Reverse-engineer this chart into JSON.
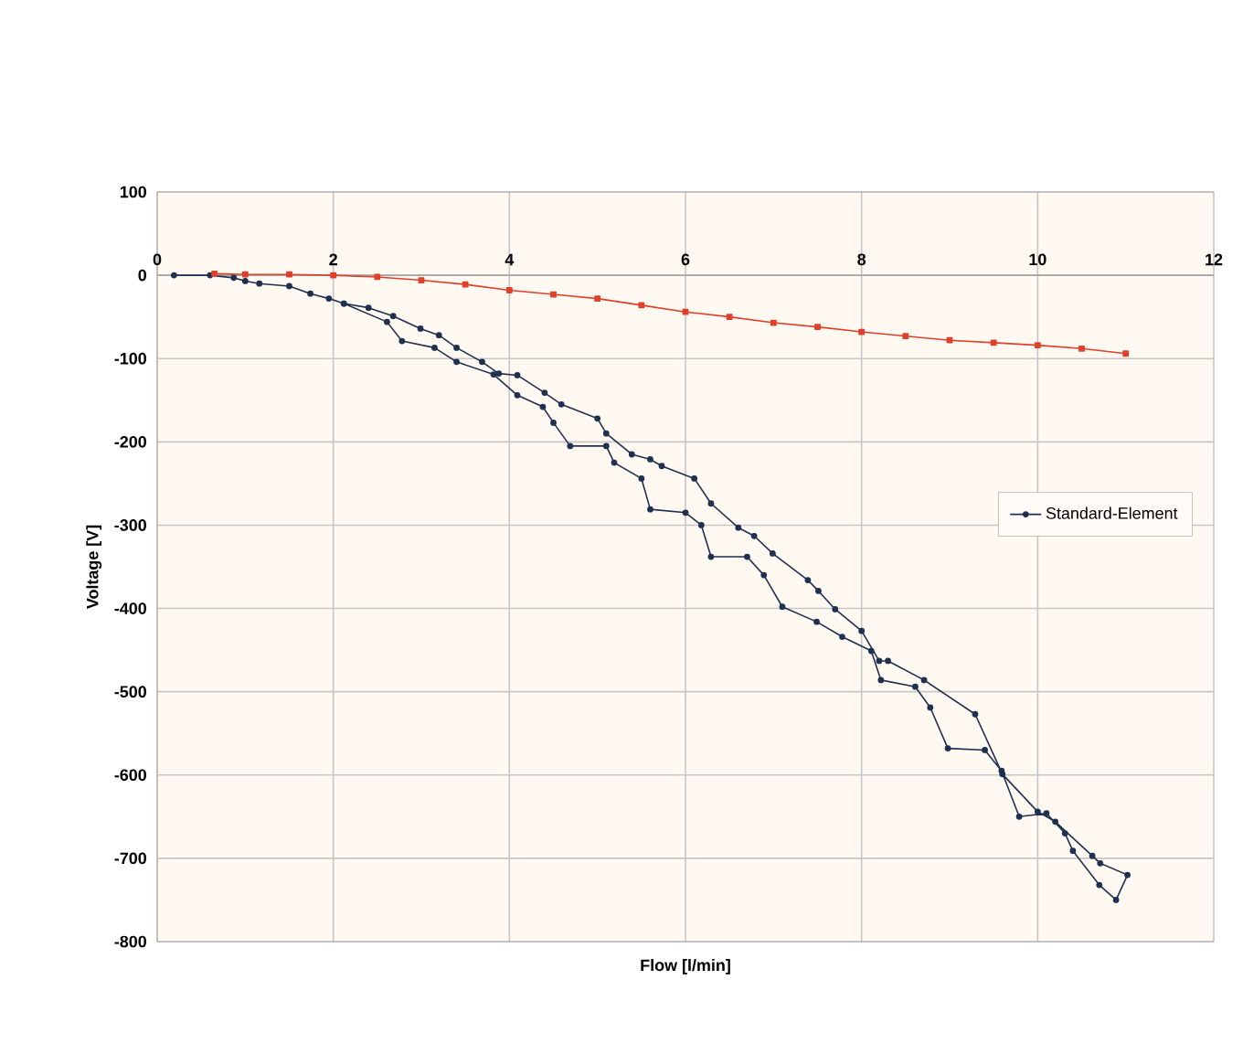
{
  "chart_data": {
    "type": "line",
    "xlabel": "Flow [l/min]",
    "ylabel": "Voltage [V]",
    "xlim": [
      0,
      12
    ],
    "xticks": [
      0,
      2,
      4,
      6,
      8,
      10,
      12
    ],
    "ylim": [
      -800,
      100
    ],
    "yticks": [
      -800,
      -700,
      -600,
      -500,
      -400,
      -300,
      -200,
      -100,
      0,
      100
    ],
    "grid": true,
    "legend": "right",
    "marker": "circle",
    "line_style": "solid",
    "series": [
      {
        "name": "Standard-Element",
        "color": "#1f3050",
        "x": [
          0.19,
          0.6,
          0.87,
          1.0,
          1.16,
          1.5,
          1.74,
          1.95,
          2.12,
          2.61,
          2.78,
          3.15,
          3.4,
          3.82,
          4.09,
          4.38,
          4.5,
          4.69,
          5.1,
          5.19,
          5.5,
          5.6,
          6.0,
          6.18,
          6.29,
          6.7,
          6.89,
          7.1,
          7.49,
          7.78,
          8.11,
          8.22,
          8.61,
          8.78,
          8.98,
          9.4,
          9.59,
          9.79,
          10.1,
          10.31,
          10.4,
          10.7,
          10.89,
          11.02,
          10.71,
          10.62,
          10.2,
          10.0,
          9.6,
          9.29,
          8.71,
          8.3,
          8.2,
          8.0,
          7.7,
          7.51,
          7.39,
          6.99,
          6.78,
          6.6,
          6.29,
          6.1,
          5.73,
          5.6,
          5.39,
          5.1,
          5.0,
          4.59,
          4.4,
          4.09,
          3.88,
          3.69,
          3.4,
          3.2,
          2.99,
          2.68,
          2.4,
          2.12
        ],
        "values": [
          0,
          0,
          -3,
          -7,
          -10,
          -13,
          -22,
          -28,
          -34,
          -56,
          -79,
          -87,
          -104,
          -119,
          -144,
          -158,
          -177,
          -205,
          -205,
          -225,
          -244,
          -281,
          -285,
          -300,
          -338,
          -338,
          -360,
          -398,
          -416,
          -434,
          -451,
          -486,
          -494,
          -519,
          -568,
          -570,
          -595,
          -650,
          -646,
          -670,
          -691,
          -732,
          -750,
          -720,
          -706,
          -697,
          -656,
          -644,
          -599,
          -527,
          -486,
          -463,
          -463,
          -427,
          -401,
          -379,
          -366,
          -334,
          -313,
          -303,
          -274,
          -244,
          -229,
          -221,
          -215,
          -190,
          -172,
          -155,
          -141,
          -120,
          -118,
          -104,
          -87,
          -72,
          -64,
          -49,
          -39,
          -34
        ]
      },
      {
        "color": "#e0402a",
        "marker": "square",
        "x": [
          0.65,
          1,
          1.5,
          2,
          2.5,
          3,
          3.5,
          4,
          4.5,
          5,
          5.5,
          6,
          6.5,
          7,
          7.5,
          8,
          8.5,
          9,
          9.5,
          10,
          10.5,
          11
        ],
        "values": [
          2,
          1,
          1,
          0,
          -2,
          -6,
          -11,
          -18,
          -23,
          -28,
          -36,
          -44,
          -50,
          -57,
          -62,
          -68,
          -73,
          -78,
          -81,
          -84,
          -88,
          -94
        ]
      }
    ]
  }
}
